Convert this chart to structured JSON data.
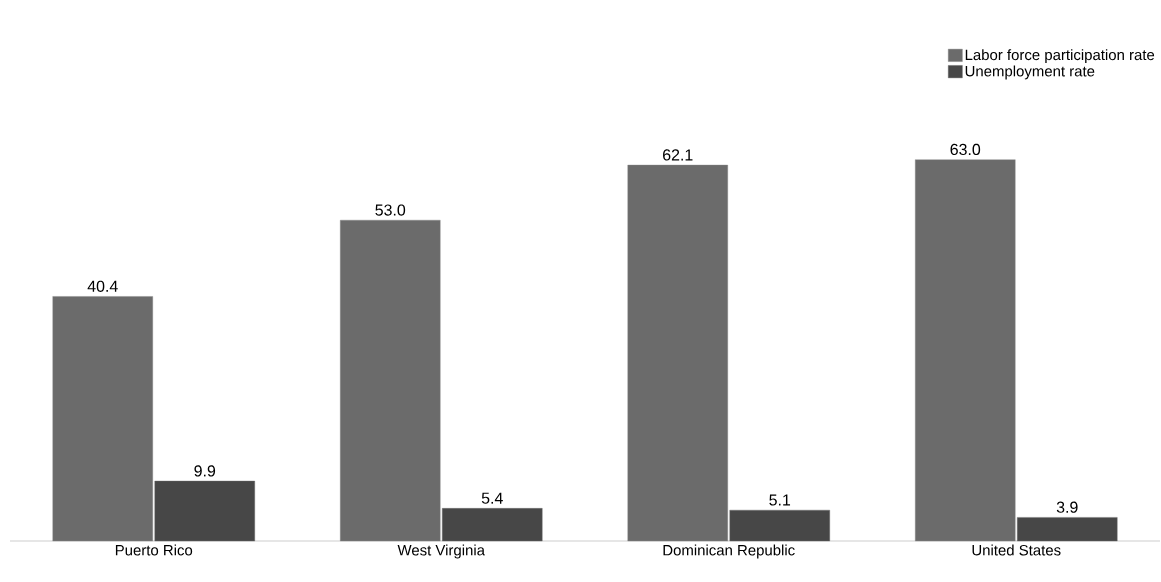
{
  "chart_data": {
    "type": "bar",
    "categories": [
      "Puerto Rico",
      "West Virginia",
      "Dominican Republic",
      "United States"
    ],
    "series": [
      {
        "name": "Labor force participation rate",
        "color": "#6b6b6b",
        "values": [
          40.4,
          53.0,
          62.1,
          63.0
        ],
        "value_labels": [
          "40.4",
          "53.0",
          "62.1",
          "63.0"
        ]
      },
      {
        "name": "Unemployment rate",
        "color": "#474747",
        "values": [
          9.9,
          5.4,
          5.1,
          3.9
        ],
        "value_labels": [
          "9.9",
          "5.4",
          "5.1",
          "3.9"
        ]
      }
    ],
    "legend": "top right"
  }
}
